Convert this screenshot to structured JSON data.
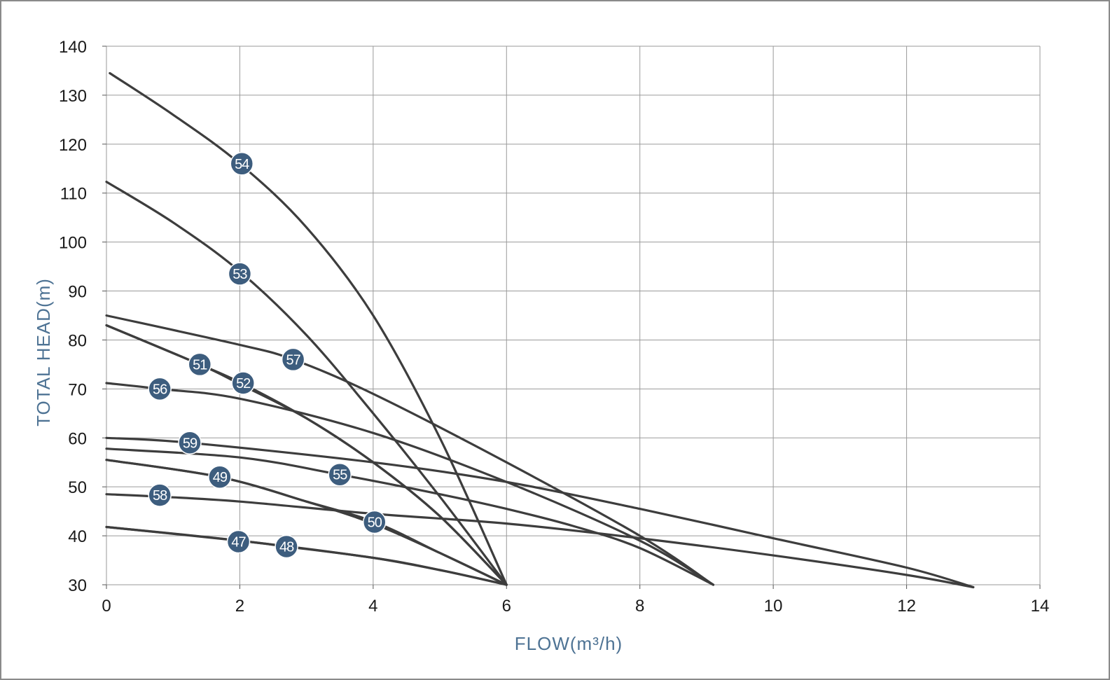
{
  "chart_data": {
    "type": "line",
    "title": "",
    "xlabel": "FLOW(m³/h)",
    "ylabel": "TOTAL HEAD(m)",
    "xlim": [
      0,
      14
    ],
    "ylim": [
      30,
      140
    ],
    "x_ticks": [
      0,
      2,
      4,
      6,
      8,
      10,
      12,
      14
    ],
    "y_ticks": [
      30,
      40,
      50,
      60,
      70,
      80,
      90,
      100,
      110,
      120,
      130,
      140
    ],
    "grid": true,
    "line_color": "#3d3d3d",
    "badge_color": "#3d5d7e",
    "series": [
      {
        "name": "54",
        "points": [
          [
            0.05,
            134.5
          ],
          [
            1,
            126
          ],
          [
            2,
            116
          ],
          [
            3,
            103
          ],
          [
            4,
            85
          ],
          [
            5,
            60
          ],
          [
            6,
            30
          ]
        ],
        "label_at": [
          2.03,
          116
        ]
      },
      {
        "name": "53",
        "points": [
          [
            0,
            112.3
          ],
          [
            1,
            104
          ],
          [
            2,
            94
          ],
          [
            3,
            81
          ],
          [
            4,
            65
          ],
          [
            5,
            48
          ],
          [
            6,
            30
          ]
        ],
        "label_at": [
          2.0,
          93.5
        ]
      },
      {
        "name": "57",
        "points": [
          [
            0,
            85
          ],
          [
            2,
            79
          ],
          [
            2.8,
            76
          ],
          [
            4,
            69
          ],
          [
            6,
            55
          ],
          [
            8,
            40
          ],
          [
            9.1,
            30
          ]
        ],
        "label_at": [
          2.8,
          76
        ]
      },
      {
        "name": "51",
        "points": [
          [
            0,
            83
          ],
          [
            1.4,
            75
          ],
          [
            2,
            71
          ],
          [
            3,
            64
          ],
          [
            4,
            55
          ],
          [
            5,
            44
          ],
          [
            6,
            30
          ]
        ],
        "label_at": [
          1.4,
          75
        ]
      },
      {
        "name": "52",
        "points": [
          [
            0,
            83
          ],
          [
            1.4,
            75
          ],
          [
            2.05,
            71
          ],
          [
            3,
            64
          ],
          [
            4,
            55
          ],
          [
            5,
            44
          ],
          [
            6,
            30
          ]
        ],
        "label_at": [
          2.05,
          71.2
        ]
      },
      {
        "name": "56",
        "points": [
          [
            0,
            71.2
          ],
          [
            0.8,
            70
          ],
          [
            2,
            68
          ],
          [
            4,
            61
          ],
          [
            6,
            51
          ],
          [
            8,
            39
          ],
          [
            9.1,
            30
          ]
        ],
        "label_at": [
          0.8,
          70
        ]
      },
      {
        "name": "59",
        "points": [
          [
            0,
            60
          ],
          [
            1.25,
            59
          ],
          [
            4,
            55
          ],
          [
            6,
            51
          ],
          [
            8,
            45.5
          ],
          [
            10,
            39.5
          ],
          [
            12,
            33.5
          ],
          [
            13,
            29.5
          ]
        ],
        "label_at": [
          1.25,
          59
        ]
      },
      {
        "name": "55",
        "points": [
          [
            0,
            57.8
          ],
          [
            2,
            56
          ],
          [
            3.5,
            52.5
          ],
          [
            5,
            48.5
          ],
          [
            6,
            45.5
          ],
          [
            7,
            42
          ],
          [
            8,
            37.5
          ],
          [
            9.1,
            30
          ]
        ],
        "label_at": [
          3.5,
          52.5
        ]
      },
      {
        "name": "49",
        "points": [
          [
            0,
            55.5
          ],
          [
            1.7,
            52
          ],
          [
            3,
            47
          ],
          [
            4,
            42.5
          ],
          [
            5,
            36.5
          ],
          [
            6,
            30
          ]
        ],
        "label_at": [
          1.7,
          52
        ]
      },
      {
        "name": "58",
        "points": [
          [
            0,
            48.5
          ],
          [
            0.8,
            48
          ],
          [
            2,
            47
          ],
          [
            4,
            44.5
          ],
          [
            6,
            42.5
          ],
          [
            8,
            39.5
          ],
          [
            10,
            36
          ],
          [
            12,
            32
          ],
          [
            13,
            29.5
          ]
        ],
        "label_at": [
          0.8,
          48.3
        ]
      },
      {
        "name": "50",
        "points": [
          [
            0,
            55.5
          ],
          [
            1.7,
            52
          ],
          [
            3,
            47
          ],
          [
            4.02,
            42.8
          ],
          [
            5,
            36.5
          ],
          [
            6,
            30
          ]
        ],
        "label_at": [
          4.02,
          42.8
        ]
      },
      {
        "name": "47",
        "points": [
          [
            0,
            41.8
          ],
          [
            2,
            39
          ],
          [
            4,
            35.5
          ],
          [
            5,
            33
          ],
          [
            6,
            30
          ]
        ],
        "label_at": [
          1.98,
          38.8
        ]
      },
      {
        "name": "48",
        "points": [
          [
            0,
            41.8
          ],
          [
            2,
            39
          ],
          [
            2.7,
            37.8
          ],
          [
            4,
            35.5
          ],
          [
            5,
            33
          ],
          [
            6,
            30
          ]
        ],
        "label_at": [
          2.7,
          37.8
        ]
      }
    ]
  }
}
